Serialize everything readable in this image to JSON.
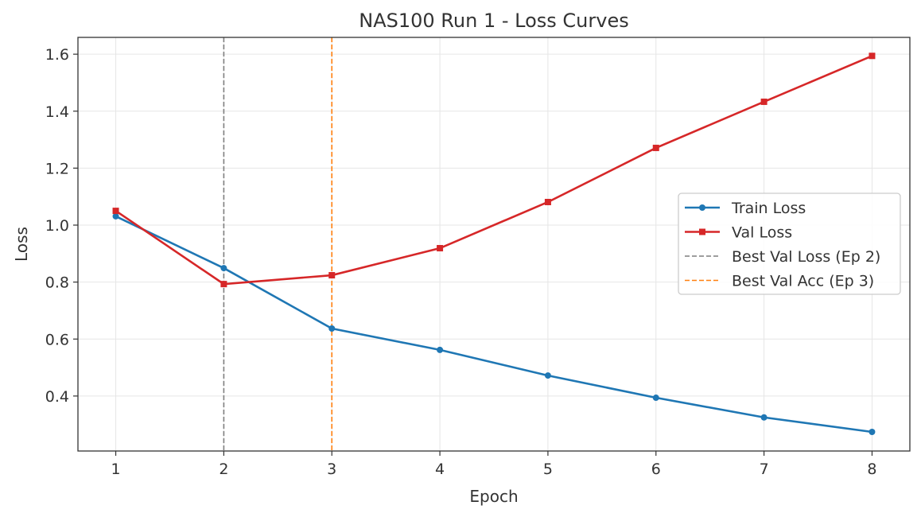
{
  "chart_data": {
    "type": "line",
    "title": "NAS100 Run 1 - Loss Curves",
    "xlabel": "Epoch",
    "ylabel": "Loss",
    "xlim": [
      0.65,
      8.35
    ],
    "ylim": [
      0.207,
      1.659
    ],
    "xticks": [
      1,
      2,
      3,
      4,
      5,
      6,
      7,
      8
    ],
    "yticks": [
      0.4,
      0.6,
      0.8,
      1.0,
      1.2,
      1.4,
      1.6
    ],
    "ytick_labels": [
      "0.4",
      "0.6",
      "0.8",
      "1.0",
      "1.2",
      "1.4",
      "1.6"
    ],
    "grid": true,
    "legend_position": "center-right",
    "x": [
      1,
      2,
      3,
      4,
      5,
      6,
      7,
      8
    ],
    "series": [
      {
        "name": "Train Loss",
        "color": "#1f77b4",
        "marker": "circle",
        "values": [
          1.031,
          0.849,
          0.637,
          0.562,
          0.472,
          0.394,
          0.325,
          0.274
        ]
      },
      {
        "name": "Val Loss",
        "color": "#d62728",
        "marker": "square",
        "values": [
          1.05,
          0.793,
          0.824,
          0.919,
          1.081,
          1.271,
          1.433,
          1.594
        ]
      }
    ],
    "vlines": [
      {
        "name": "Best Val Loss (Ep 2)",
        "x": 2,
        "color": "#7f7f7f",
        "style": "dashed"
      },
      {
        "name": "Best Val Acc (Ep 3)",
        "x": 3,
        "color": "#ff7f0e",
        "style": "dashed"
      }
    ]
  }
}
